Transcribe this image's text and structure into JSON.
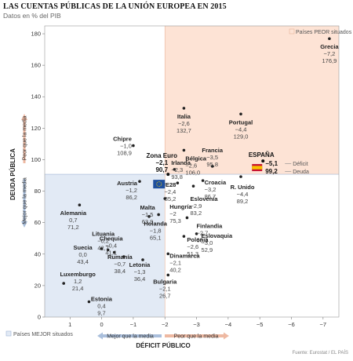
{
  "title": "LAS CUENTAS PÚBLICAS DE LA UNIÓN EUROPEA EN 2015",
  "subtitle": "Datos en % del PIB",
  "source": "Fuente: Eurostat / EL PAÍS",
  "colors": {
    "worse_zone": "#fde3d5",
    "better_zone": "#e2eaf5",
    "worse_arrow": "#eeb9a2",
    "better_arrow": "#aabfdc",
    "axis_text": "#333333",
    "grid": "#dddddd",
    "eu_blue": "#1f4f9e",
    "spain_red": "#c8102e",
    "spain_yellow": "#f7c200"
  },
  "chart_data": {
    "type": "scatter",
    "x_axis_reversed": true,
    "xlim": [
      1.8,
      -7.5
    ],
    "ylim": [
      0,
      185
    ],
    "xticks": [
      1,
      0,
      -1,
      -2,
      -3,
      -4,
      -5,
      -6,
      -7
    ],
    "xtick_labels": [
      "1",
      "0",
      "−1",
      "−2",
      "−3",
      "−4",
      "−5",
      "−6",
      "−7"
    ],
    "yticks": [
      0,
      20,
      40,
      60,
      80,
      100,
      120,
      140,
      160,
      180
    ],
    "xlabel": "DÉFICIT PÚBLICO",
    "ylabel": "DEUDA PÚBLICA",
    "reference_x": -2,
    "reference_y": 90.7,
    "zones": {
      "worse_label": "Países PEOR situados",
      "better_label": "Países MEJOR situados"
    },
    "axis_hints": {
      "x_better": "Mejor que la media",
      "x_worse": "Peor que la media",
      "y_better": "Mejor que la media",
      "y_worse": "Peor que la media"
    },
    "points": [
      {
        "name": "Grecia",
        "deficit": "−7,2",
        "debt": "176,9",
        "x": -7.2,
        "y": 176.9
      },
      {
        "name": "Italia",
        "deficit": "−2,6",
        "debt": "132,7",
        "x": -2.6,
        "y": 132.7
      },
      {
        "name": "Portugal",
        "deficit": "−4,4",
        "debt": "129,0",
        "x": -4.4,
        "y": 129.0
      },
      {
        "name": "Chipre",
        "deficit": "−1,0",
        "debt": "108,9",
        "x": -1.0,
        "y": 108.9
      },
      {
        "name": "Bélgica",
        "deficit": "−2,6",
        "debt": "106,0",
        "x": -2.6,
        "y": 106.0
      },
      {
        "name": "Francia",
        "deficit": "−3,5",
        "debt": "95,8",
        "x": -3.5,
        "y": 95.8
      },
      {
        "name": "Irlanda",
        "deficit": "−2,3",
        "debt": "93,8",
        "x": -2.3,
        "y": 93.8
      },
      {
        "name": "Austria",
        "deficit": "−1,2",
        "debt": "86,2",
        "x": -1.2,
        "y": 86.2
      },
      {
        "name": "UE28",
        "deficit": "−2,4",
        "debt": "85,2",
        "x": -2.4,
        "y": 85.2
      },
      {
        "name": "Croacia",
        "deficit": "−3,2",
        "debt": "86,7",
        "x": -3.2,
        "y": 86.7
      },
      {
        "name": "Eslovenia",
        "deficit": "−2,9",
        "debt": "83,2",
        "x": -2.9,
        "y": 83.2
      },
      {
        "name": "R. Unido",
        "deficit": "−4,4",
        "debt": "89,2",
        "x": -4.4,
        "y": 89.2
      },
      {
        "name": "Lituania",
        "deficit": "−0,2",
        "debt": "42,7",
        "x": -0.2,
        "y": 42.7
      },
      {
        "name": "Malta",
        "deficit": "−1,5",
        "debt": "63,9",
        "x": -1.5,
        "y": 63.9
      },
      {
        "name": "Alemania",
        "deficit": "0,7",
        "debt": "71,2",
        "x": 0.7,
        "y": 71.2
      },
      {
        "name": "Hungría",
        "deficit": "−2",
        "debt": "75,3",
        "x": -2.0,
        "y": 75.3
      },
      {
        "name": "Holanda",
        "deficit": "−1,8",
        "debt": "65,1",
        "x": -1.8,
        "y": 65.1
      },
      {
        "name": "Chequia",
        "deficit": "−0,4",
        "debt": "41,1",
        "x": -0.4,
        "y": 41.1
      },
      {
        "name": "Eslovaquia",
        "deficit": "−3,0",
        "debt": "52,9",
        "x": -3.0,
        "y": 52.9
      },
      {
        "name": "Finlandia",
        "deficit": "−2,7",
        "debt": "63,1",
        "x": -2.7,
        "y": 63.1
      },
      {
        "name": "Suecia",
        "deficit": "0,0",
        "debt": "43,4",
        "x": 0.0,
        "y": 43.4
      },
      {
        "name": "Rumanía",
        "deficit": "−0,7",
        "debt": "38,4",
        "x": -0.7,
        "y": 38.4
      },
      {
        "name": "Dinamarca",
        "deficit": "−2,1",
        "debt": "40,2",
        "x": -2.1,
        "y": 40.2
      },
      {
        "name": "Polonia",
        "deficit": "−2,6",
        "debt": "51,3",
        "x": -2.6,
        "y": 51.3
      },
      {
        "name": "Letonia",
        "deficit": "−1,3",
        "debt": "36,4",
        "x": -1.3,
        "y": 36.4
      },
      {
        "name": "Luxemburgo",
        "deficit": "1,2",
        "debt": "21,4",
        "x": 1.2,
        "y": 21.4
      },
      {
        "name": "Bulgaria",
        "deficit": "−2,1",
        "debt": "26,7",
        "x": -2.1,
        "y": 26.7
      },
      {
        "name": "Estonia",
        "deficit": "0,4",
        "debt": "9,7",
        "x": 0.4,
        "y": 9.7
      }
    ],
    "highlights": {
      "eurozone": {
        "name": "Zona Euro",
        "deficit": "−2,1",
        "debt": "90,7",
        "x": -2.1,
        "y": 90.7
      },
      "spain": {
        "name": "ESPAÑA",
        "deficit": "−5,1",
        "debt": "99,2",
        "x": -5.1,
        "y": 99.2,
        "deficit_label": "Déficit",
        "debt_label": "Deuda"
      }
    }
  }
}
